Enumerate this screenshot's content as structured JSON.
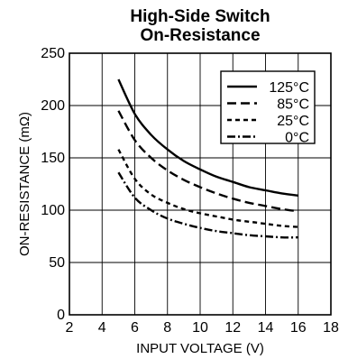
{
  "chart_data": {
    "type": "line",
    "title": [
      "High-Side Switch",
      "On-Resistance"
    ],
    "xlabel": "INPUT VOLTAGE (V)",
    "ylabel": "ON-RESISTANCE (mΩ)",
    "xlim": [
      2,
      18
    ],
    "ylim": [
      0,
      250
    ],
    "xticks": [
      2,
      4,
      6,
      8,
      10,
      12,
      14,
      16,
      18
    ],
    "yticks": [
      0,
      50,
      100,
      150,
      200,
      250
    ],
    "grid": true,
    "legend_position": "top-right",
    "series": [
      {
        "name": "125°C",
        "dash": "solid",
        "x": [
          5,
          6,
          7,
          8,
          9,
          10,
          11,
          12,
          13,
          14,
          15,
          16
        ],
        "y": [
          225,
          192,
          172,
          158,
          147,
          139,
          132,
          127,
          122,
          119,
          116,
          114
        ]
      },
      {
        "name": "85°C",
        "dash": "long-dash",
        "x": [
          5,
          6,
          7,
          8,
          9,
          10,
          11,
          12,
          13,
          14,
          15,
          16
        ],
        "y": [
          195,
          167,
          150,
          138,
          129,
          122,
          116,
          111,
          107,
          104,
          101,
          99
        ]
      },
      {
        "name": "25°C",
        "dash": "short-dash",
        "x": [
          5,
          6,
          7,
          8,
          9,
          10,
          11,
          12,
          13,
          14,
          15,
          16
        ],
        "y": [
          158,
          130,
          115,
          107,
          101,
          97,
          94,
          91,
          89,
          87,
          85,
          84
        ]
      },
      {
        "name": "0°C",
        "dash": "dash-dot",
        "x": [
          5,
          6,
          7,
          8,
          9,
          10,
          11,
          12,
          13,
          14,
          15,
          16
        ],
        "y": [
          136,
          112,
          100,
          92,
          87,
          83,
          80,
          78,
          76,
          75,
          74,
          74
        ]
      }
    ]
  }
}
